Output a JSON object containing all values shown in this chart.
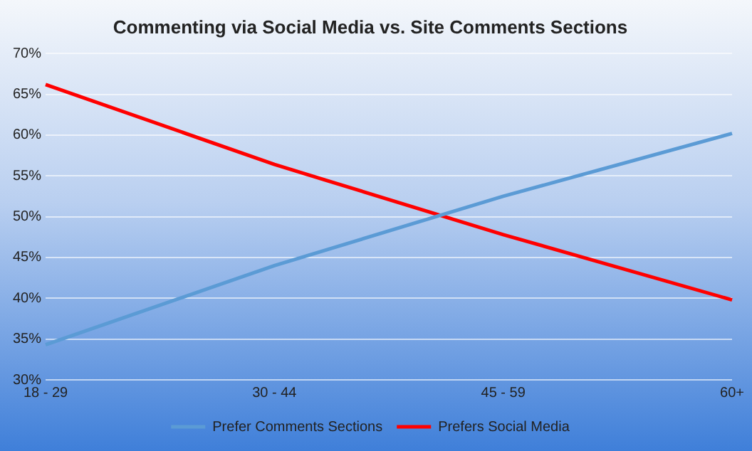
{
  "chart_data": {
    "type": "line",
    "title": "Commenting via Social Media vs. Site Comments Sections",
    "categories": [
      "18 - 29",
      "30 - 44",
      "45 - 59",
      "60+"
    ],
    "series": [
      {
        "name": "Prefer Comments Sections",
        "color": "#5b9bd5",
        "values": [
          34.3,
          44,
          52.5,
          60.2
        ]
      },
      {
        "name": "Prefers Social Media",
        "color": "#ff0000",
        "values": [
          66.2,
          56.4,
          47.8,
          39.8
        ]
      }
    ],
    "ylim": [
      30,
      70
    ],
    "yticks": [
      {
        "value": 30,
        "label": "30%"
      },
      {
        "value": 35,
        "label": "35%"
      },
      {
        "value": 40,
        "label": "40%"
      },
      {
        "value": 45,
        "label": "45%"
      },
      {
        "value": 50,
        "label": "50%"
      },
      {
        "value": 55,
        "label": "55%"
      },
      {
        "value": 60,
        "label": "60%"
      },
      {
        "value": 65,
        "label": "65%"
      },
      {
        "value": 70,
        "label": "70%"
      }
    ],
    "grid": "y",
    "legend": "bottom",
    "marker": "none",
    "line_style": "solid"
  }
}
